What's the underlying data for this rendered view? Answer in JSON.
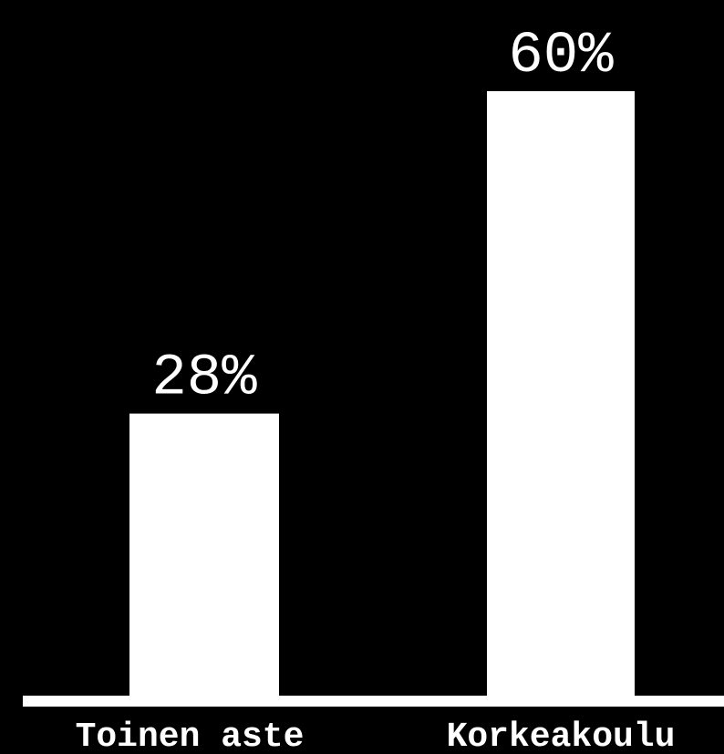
{
  "chart_data": {
    "type": "bar",
    "categories": [
      "Toinen aste",
      "Korkeakoulu"
    ],
    "values": [
      28,
      60
    ],
    "value_labels": [
      "28%",
      "60%"
    ],
    "ylim": [
      0,
      60
    ],
    "grid": false,
    "legend": "none",
    "colors": {
      "background": "#000000",
      "bar": "#ffffff",
      "text": "#ffffff",
      "axis": "#ffffff"
    }
  }
}
